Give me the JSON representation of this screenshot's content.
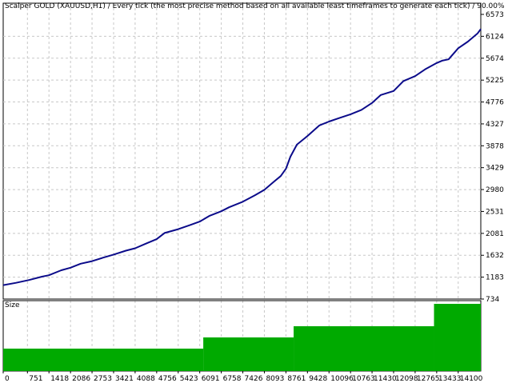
{
  "window": {
    "title": "Scalper GOLD (XAUUSD,H1) / Every tick (the most precise method based on all available least timeframes to generate each tick) / 90.00%"
  },
  "colors": {
    "background": "#ffffff",
    "balance_line": "#0b0b8a",
    "size_fill": "#00aa00",
    "grid": "#c8c8c8",
    "axis": "#000000"
  },
  "chart_data": [
    {
      "type": "line",
      "title": "Scalper GOLD (XAUUSD,H1) / Every tick (the most precise method based on all available least timeframes to generate each tick) / 90.00%",
      "xlabel": "",
      "ylabel": "",
      "grid": true,
      "ylim": [
        734,
        6573
      ],
      "xlim": [
        0,
        14800
      ],
      "ytick_labels": [
        "6573",
        "6124",
        "5674",
        "5225",
        "4776",
        "4327",
        "3878",
        "3429",
        "2980",
        "2531",
        "2081",
        "1632",
        "1183",
        "734"
      ],
      "ytick_values": [
        6573,
        6124,
        5674,
        5225,
        4776,
        4327,
        3878,
        3429,
        2980,
        2531,
        2081,
        1632,
        1183,
        734
      ],
      "series": [
        {
          "x": [
            0,
            400,
            800,
            1200,
            1418,
            1800,
            2086,
            2400,
            2753,
            3100,
            3421,
            3800,
            4088,
            4400,
            4756,
            5000,
            5423,
            5800,
            6091,
            6400,
            6758,
            7000,
            7426,
            7800,
            8093,
            8400,
            8600,
            8761,
            8900,
            9100,
            9428,
            9800,
            10096,
            10400,
            10763,
            11100,
            11430,
            11700,
            12098,
            12400,
            12765,
            13100,
            13433,
            13600,
            13800,
            14100,
            14400,
            14700,
            14800
          ],
          "y": [
            1020,
            1070,
            1130,
            1200,
            1230,
            1330,
            1380,
            1460,
            1510,
            1580,
            1640,
            1720,
            1770,
            1860,
            1960,
            2090,
            2170,
            2260,
            2330,
            2450,
            2540,
            2620,
            2730,
            2860,
            2970,
            3140,
            3250,
            3400,
            3650,
            3900,
            4080,
            4300,
            4380,
            4450,
            4530,
            4620,
            4760,
            4920,
            5000,
            5200,
            5300,
            5450,
            5570,
            5620,
            5650,
            5880,
            6020,
            6190,
            6280
          ]
        }
      ]
    },
    {
      "type": "area",
      "title": "Size",
      "xlabel": "",
      "ylabel": "",
      "grid": true,
      "xlim": [
        0,
        14800
      ],
      "xtick_labels": [
        "0",
        "751",
        "1418",
        "2086",
        "2753",
        "3421",
        "4088",
        "4756",
        "5423",
        "6091",
        "6758",
        "7426",
        "8093",
        "8761",
        "9428",
        "10096",
        "10763",
        "11430",
        "12098",
        "12765",
        "13433",
        "14100"
      ],
      "xtick_values": [
        0,
        751,
        1418,
        2086,
        2753,
        3421,
        4088,
        4756,
        5423,
        6091,
        6758,
        7426,
        8093,
        8761,
        9428,
        10096,
        10763,
        11430,
        12098,
        12765,
        13433,
        14100
      ],
      "steps": [
        {
          "x_start": 0,
          "x_end": 6200,
          "value": 0.02
        },
        {
          "x_start": 6200,
          "x_end": 9000,
          "value": 0.03
        },
        {
          "x_start": 9000,
          "x_end": 13350,
          "value": 0.04
        },
        {
          "x_start": 13350,
          "x_end": 14800,
          "value": 0.06
        }
      ],
      "ylim": [
        0,
        0.06
      ]
    }
  ]
}
